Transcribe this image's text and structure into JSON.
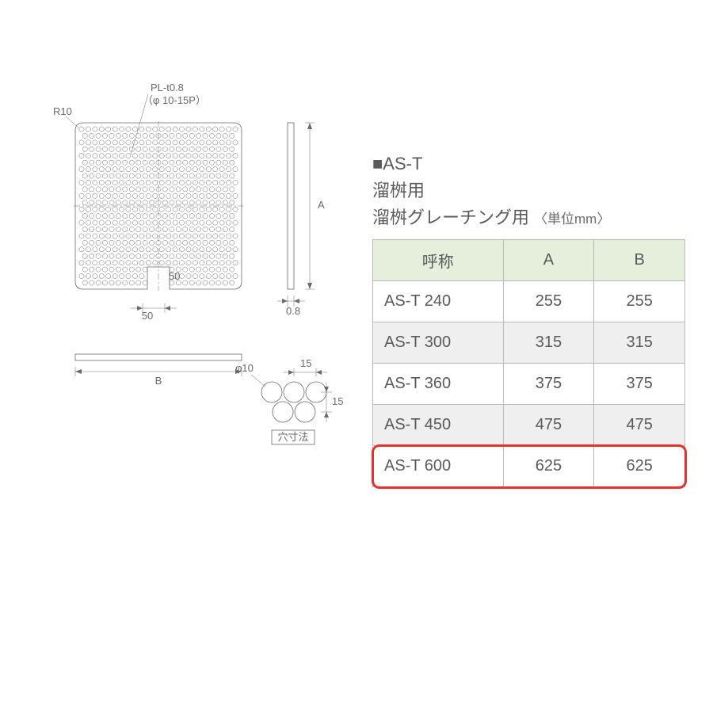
{
  "header": {
    "model_prefix": "■AS-T",
    "line1": "溜桝用",
    "line2": "溜桝グレーチング用",
    "unit_note": "〈単位mm〉"
  },
  "table": {
    "columns": [
      "呼称",
      "A",
      "B"
    ],
    "col_widths": [
      "165px",
      "115px",
      "115px"
    ],
    "header_bg": "#e6efdc",
    "alt_bg": "#efefef",
    "border_color": "#b8b8b8",
    "font_size": 20,
    "rows": [
      {
        "name": "AS-T 240",
        "A": "255",
        "B": "255",
        "alt": false
      },
      {
        "name": "AS-T 300",
        "A": "315",
        "B": "315",
        "alt": true
      },
      {
        "name": "AS-T 360",
        "A": "375",
        "B": "375",
        "alt": false
      },
      {
        "name": "AS-T 450",
        "A": "475",
        "B": "475",
        "alt": true
      },
      {
        "name": "AS-T 600",
        "A": "625",
        "B": "625",
        "alt": false,
        "highlight": true
      }
    ],
    "highlight": {
      "color": "#e53131",
      "radius": 10,
      "stroke_width": 3
    }
  },
  "diagram": {
    "labels": {
      "plate_note_1": "PL-t0.8",
      "plate_note_2": "（φ 10-15P）",
      "corner_radius": "R10",
      "dim_A": "A",
      "dim_B": "B",
      "thickness": "0.8",
      "notch_w": "50",
      "notch_h": "50",
      "hole_dia": "φ10",
      "hole_pitch_h": "15",
      "hole_pitch_v": "15",
      "hole_caption": "穴寸法"
    },
    "style": {
      "stroke_color": "#6a6a6a",
      "text_color": "#6a6a6a",
      "background": "#ffffff"
    },
    "plate": {
      "grid_cols": 24,
      "grid_rows": 24,
      "hole_radius": 3.1,
      "corner_radius": 10,
      "notch_w": 28,
      "notch_h": 28
    }
  }
}
